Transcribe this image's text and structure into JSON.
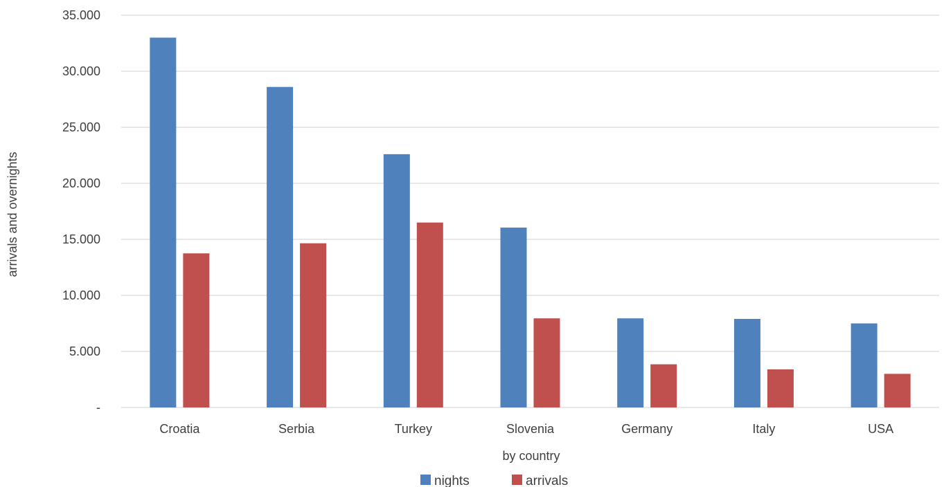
{
  "chart_data": {
    "type": "bar",
    "xlabel": "by country",
    "ylabel": "arrivals and overnights",
    "categories": [
      "Croatia",
      "Serbia",
      "Turkey",
      "Slovenia",
      "Germany",
      "Italy",
      "USA"
    ],
    "series": [
      {
        "name": "nights",
        "color": "#4F81BD",
        "values": [
          33000,
          28600,
          22600,
          16050,
          7950,
          7900,
          7500
        ]
      },
      {
        "name": "arrivals",
        "color": "#C0504D",
        "values": [
          13750,
          14650,
          16500,
          7950,
          3850,
          3400,
          3000
        ]
      }
    ],
    "ylim": [
      0,
      35000
    ],
    "yticks": [
      {
        "value": 0,
        "label": "-"
      },
      {
        "value": 5000,
        "label": "5.000"
      },
      {
        "value": 10000,
        "label": "10.000"
      },
      {
        "value": 15000,
        "label": "15.000"
      },
      {
        "value": 20000,
        "label": "20.000"
      },
      {
        "value": 25000,
        "label": "25.000"
      },
      {
        "value": 30000,
        "label": "30.000"
      },
      {
        "value": 35000,
        "label": "35.000"
      }
    ],
    "grid": true,
    "legend_position": "bottom"
  }
}
